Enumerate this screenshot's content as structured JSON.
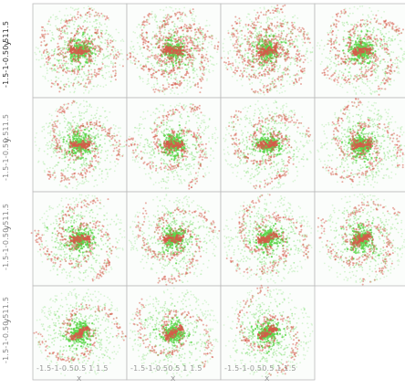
{
  "chart_data": {
    "type": "scatter",
    "grid": {
      "rows": 4,
      "cols": 4,
      "panels": 15
    },
    "xlabel": "x",
    "ylabel": "y",
    "ytick_text": "-1.5-1-0.50.511.5",
    "ytick_text_faded": "-1.5-1-0.50.511.5",
    "xtick_text": "-1.5-1-0.50.5 1 1.5",
    "xlim": [
      -1.75,
      1.75
    ],
    "ylim": [
      -1.75,
      1.75
    ],
    "series": [
      {
        "color": "#5cd64a"
      },
      {
        "color": "#d65a4a"
      }
    ],
    "panels": [
      {
        "row": 0,
        "col": 0,
        "arms": 4,
        "rotation": 0.0,
        "twist": 5.2,
        "bar_angle": 0.0
      },
      {
        "row": 0,
        "col": 1,
        "arms": 6,
        "rotation": 0.6,
        "twist": 3.4,
        "bar_angle": 0.1
      },
      {
        "row": 0,
        "col": 2,
        "arms": 6,
        "rotation": 1.1,
        "twist": 3.8,
        "bar_angle": -0.2
      },
      {
        "row": 0,
        "col": 3,
        "arms": 4,
        "rotation": 1.7,
        "twist": 4.0,
        "bar_angle": -0.15
      },
      {
        "row": 1,
        "col": 0,
        "arms": 3,
        "rotation": 2.3,
        "twist": 4.2,
        "bar_angle": 0.05
      },
      {
        "row": 1,
        "col": 1,
        "arms": 3,
        "rotation": 2.9,
        "twist": 4.4,
        "bar_angle": 0.0
      },
      {
        "row": 1,
        "col": 2,
        "arms": 3,
        "rotation": 3.5,
        "twist": 4.5,
        "bar_angle": 0.0
      },
      {
        "row": 1,
        "col": 3,
        "arms": 3,
        "rotation": 4.1,
        "twist": 4.6,
        "bar_angle": 0.0
      },
      {
        "row": 2,
        "col": 0,
        "arms": 3,
        "rotation": 4.6,
        "twist": 4.8,
        "bar_angle": 0.0
      },
      {
        "row": 2,
        "col": 1,
        "arms": 3,
        "rotation": 5.2,
        "twist": 4.9,
        "bar_angle": -0.1
      },
      {
        "row": 2,
        "col": 2,
        "arms": 3,
        "rotation": 5.8,
        "twist": 5.0,
        "bar_angle": -0.3
      },
      {
        "row": 2,
        "col": 3,
        "arms": 3,
        "rotation": 0.4,
        "twist": 5.1,
        "bar_angle": -0.4
      },
      {
        "row": 3,
        "col": 0,
        "arms": 2,
        "rotation": 1.0,
        "twist": 5.2,
        "bar_angle": -0.6
      },
      {
        "row": 3,
        "col": 1,
        "arms": 2,
        "rotation": 1.6,
        "twist": 5.3,
        "bar_angle": -0.6
      },
      {
        "row": 3,
        "col": 2,
        "arms": 2,
        "rotation": 2.2,
        "twist": 5.4,
        "bar_angle": -0.6
      }
    ]
  }
}
